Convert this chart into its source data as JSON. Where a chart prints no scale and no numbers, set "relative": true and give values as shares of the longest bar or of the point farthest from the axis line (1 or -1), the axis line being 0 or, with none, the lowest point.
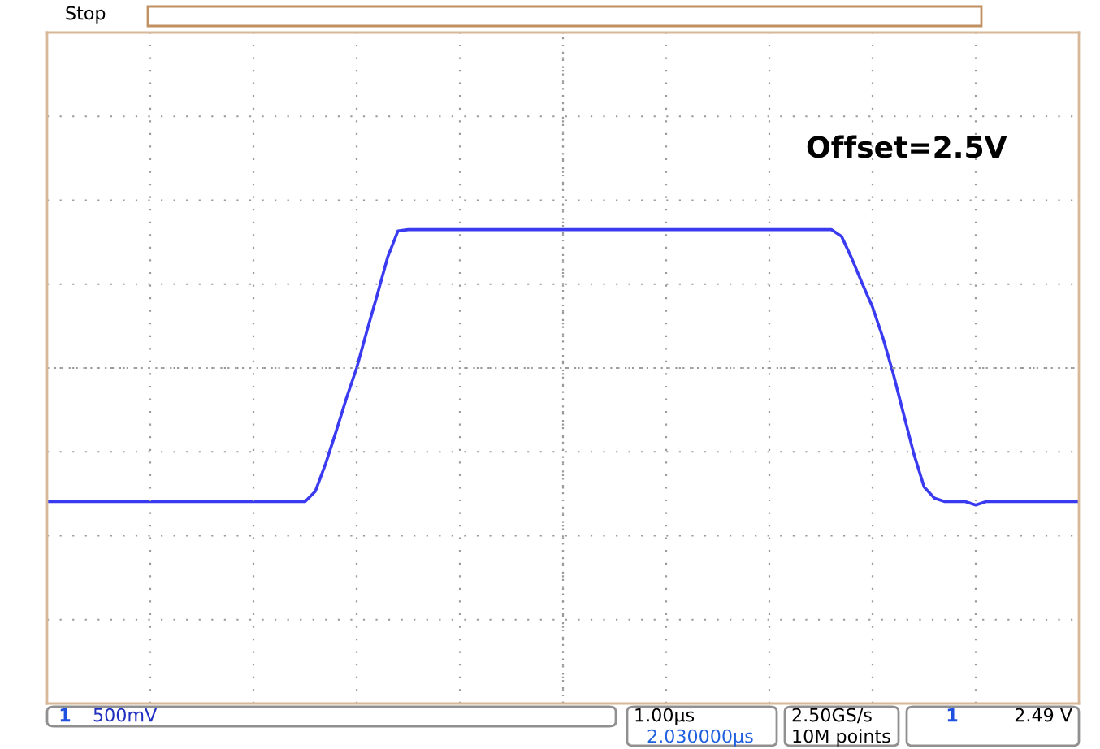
{
  "chart_data": {
    "type": "line",
    "relative": true,
    "grid": true,
    "legend": false,
    "tick_labels": false,
    "marker": "none",
    "line_style": "solid",
    "categories": [
      null,
      null,
      null,
      null,
      null,
      null,
      null,
      null,
      null,
      null,
      null,
      null,
      null,
      null,
      null,
      null,
      null,
      null,
      null,
      null,
      null,
      null,
      null,
      null,
      null,
      null,
      null,
      null,
      null,
      null,
      null,
      null,
      null,
      null,
      null,
      null,
      null,
      null,
      null,
      null,
      null,
      null,
      null,
      null,
      null,
      null,
      null,
      null,
      null,
      null,
      null,
      null,
      null,
      null,
      null,
      null,
      null,
      null,
      null,
      null,
      null,
      null,
      null,
      null,
      null,
      null,
      null,
      null,
      null,
      null,
      null,
      null,
      null,
      null,
      null,
      null,
      null,
      null,
      null,
      null,
      null,
      null,
      null,
      null,
      null,
      null,
      null,
      null,
      null,
      null,
      null,
      null,
      null,
      null,
      null,
      null,
      null,
      null,
      null,
      null,
      null
    ],
    "series": [
      {
        "color": "#3a3af0",
        "values": [
          -0.965,
          -0.965,
          -0.965,
          -0.965,
          -0.965,
          -0.965,
          -0.965,
          -0.965,
          -0.965,
          -0.965,
          -0.965,
          -0.965,
          -0.965,
          -0.965,
          -0.965,
          -0.965,
          -0.965,
          -0.965,
          -0.965,
          -0.965,
          -0.965,
          -0.965,
          -0.965,
          -0.965,
          -0.965,
          -0.965,
          -0.89,
          -0.69,
          -0.46,
          -0.22,
          0.0,
          0.27,
          0.53,
          0.8,
          0.99,
          1,
          1,
          1,
          1,
          1,
          1,
          1,
          1,
          1,
          1,
          1,
          1,
          1,
          1,
          1,
          1,
          1,
          1,
          1,
          1,
          1,
          1,
          1,
          1,
          1,
          1,
          1,
          1,
          1,
          1,
          1,
          1,
          1,
          1,
          1,
          1,
          1,
          1,
          1,
          1,
          1,
          1,
          0.95,
          0.79,
          0.61,
          0.44,
          0.22,
          -0.04,
          -0.33,
          -0.62,
          -0.86,
          -0.94,
          -0.965,
          -0.965,
          -0.965,
          -0.99,
          -0.965,
          -0.965,
          -0.965,
          -0.965,
          -0.965,
          -0.965,
          -0.965,
          -0.965,
          -0.965,
          -0.965
        ]
      }
    ],
    "annotations": [
      "Offset=2.5V",
      "Stop",
      "1",
      "500mV",
      "1.00µs",
      "2.030000µs",
      "2.50GS/s",
      "10M points",
      "1",
      "2.49 V"
    ]
  }
}
